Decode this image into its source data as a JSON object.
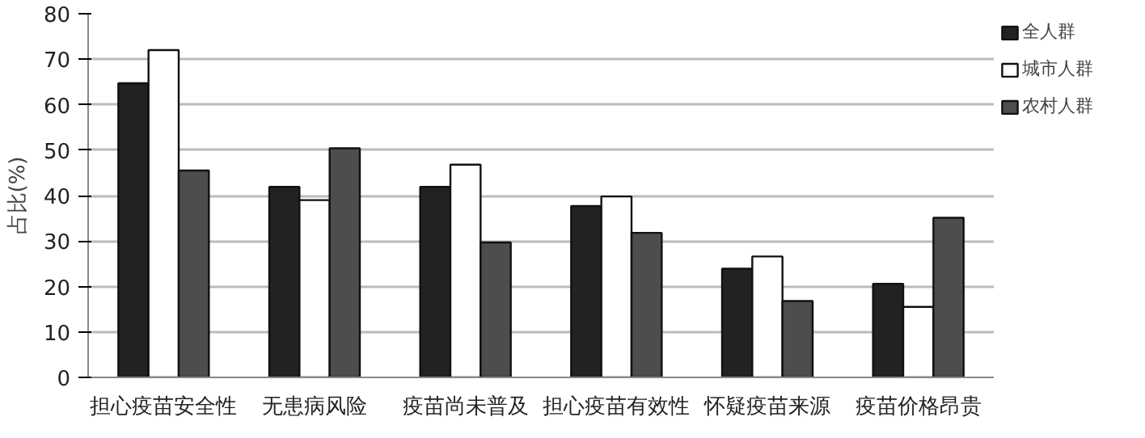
{
  "chart_data": {
    "type": "bar",
    "ylabel": "占比(%)",
    "categories": [
      "担心疫苗安全性",
      "无患病风险",
      "疫苗尚未普及",
      "担心疫苗有效性",
      "怀疑疫苗来源",
      "疫苗价格昂贵"
    ],
    "series": [
      {
        "name": "全人群",
        "color": "#222222",
        "values": [
          64.7,
          41.9,
          41.9,
          37.7,
          23.9,
          20.6
        ]
      },
      {
        "name": "城市人群",
        "color": "#ffffff",
        "values": [
          72.0,
          39.0,
          46.8,
          39.8,
          26.6,
          15.5
        ]
      },
      {
        "name": "农村人群",
        "color": "#4d4d4d",
        "values": [
          45.5,
          50.4,
          29.7,
          31.8,
          16.8,
          35.1
        ]
      }
    ],
    "ylim": [
      0,
      80
    ],
    "yticks": [
      0,
      10,
      20,
      30,
      40,
      50,
      60,
      70,
      80
    ],
    "grid": "y",
    "legend": "top right"
  }
}
